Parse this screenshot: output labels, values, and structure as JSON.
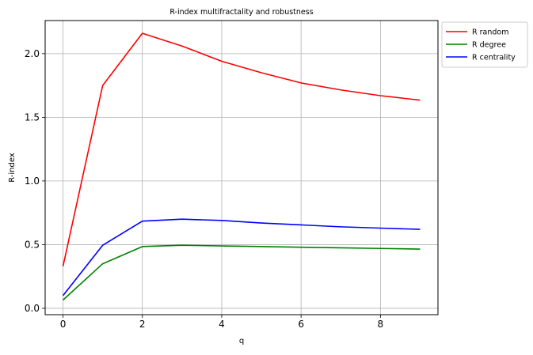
{
  "chart_data": {
    "type": "line",
    "title": "R-index multifractality and robustness",
    "xlabel": "q",
    "ylabel": "R-index",
    "xlim": [
      -0.45,
      9.45
    ],
    "ylim": [
      -0.05,
      2.26
    ],
    "xticks": [
      0,
      2,
      4,
      6,
      8
    ],
    "xtick_labels": [
      "0",
      "2",
      "4",
      "6",
      "8"
    ],
    "yticks": [
      0.0,
      0.5,
      1.0,
      1.5,
      2.0
    ],
    "ytick_labels": [
      "0.0",
      "0.5",
      "1.0",
      "1.5",
      "2.0"
    ],
    "grid": true,
    "legend": "outside-top-right",
    "x": [
      0,
      1,
      2,
      3,
      4,
      5,
      6,
      7,
      8,
      9
    ],
    "series": [
      {
        "name": "R random",
        "color": "#ff0000",
        "values": [
          0.33,
          1.75,
          2.16,
          2.06,
          1.94,
          1.85,
          1.77,
          1.715,
          1.67,
          1.635
        ]
      },
      {
        "name": "R degree",
        "color": "#008000",
        "values": [
          0.065,
          0.35,
          0.485,
          0.495,
          0.49,
          0.485,
          0.48,
          0.475,
          0.47,
          0.465
        ]
      },
      {
        "name": "R centrality",
        "color": "#0000ff",
        "values": [
          0.1,
          0.495,
          0.685,
          0.7,
          0.69,
          0.67,
          0.655,
          0.64,
          0.63,
          0.62
        ]
      }
    ]
  }
}
